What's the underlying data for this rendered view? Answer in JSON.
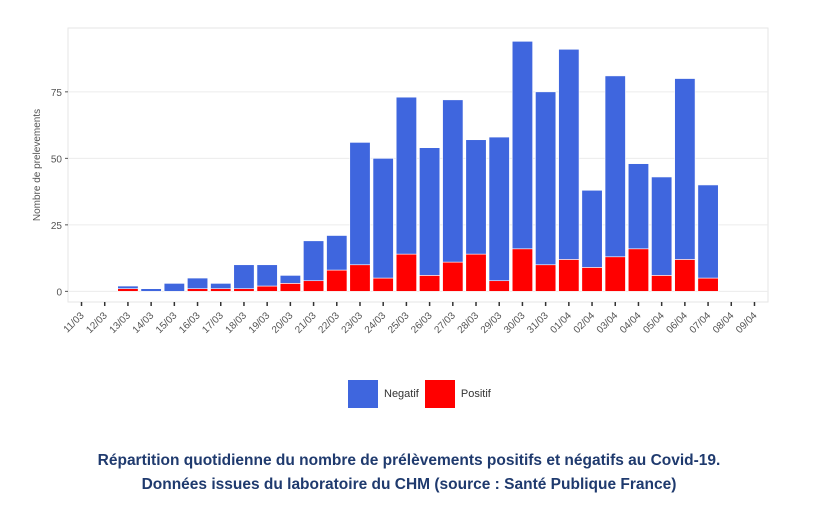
{
  "chart_data": {
    "type": "bar",
    "stacked": true,
    "ylabel": "Nombre de prelevements",
    "xlabel": "",
    "ylim": [
      -4,
      99
    ],
    "yticks": [
      0,
      25,
      50,
      75
    ],
    "grid": true,
    "legend_position": "bottom",
    "categories": [
      "11/03",
      "12/03",
      "13/03",
      "14/03",
      "15/03",
      "16/03",
      "17/03",
      "18/03",
      "19/03",
      "20/03",
      "21/03",
      "22/03",
      "23/03",
      "24/03",
      "25/03",
      "26/03",
      "27/03",
      "28/03",
      "29/03",
      "30/03",
      "31/03",
      "01/04",
      "02/04",
      "03/04",
      "04/04",
      "05/04",
      "06/04",
      "07/04",
      "08/04",
      "09/04"
    ],
    "series": [
      {
        "name": "Positif",
        "color": "#ff0000",
        "values": [
          0,
          0,
          1,
          0,
          0,
          1,
          1,
          1,
          2,
          3,
          4,
          8,
          10,
          5,
          14,
          6,
          11,
          14,
          4,
          16,
          10,
          12,
          9,
          13,
          16,
          6,
          12,
          5,
          0,
          0
        ]
      },
      {
        "name": "Negatif",
        "color": "#3f66de",
        "values": [
          0,
          0,
          1,
          1,
          3,
          4,
          2,
          9,
          8,
          3,
          15,
          13,
          46,
          45,
          59,
          48,
          61,
          43,
          54,
          78,
          65,
          79,
          29,
          68,
          32,
          37,
          68,
          35,
          0,
          0
        ]
      }
    ]
  },
  "legend": {
    "negatif": "Negatif",
    "positif": "Positif"
  },
  "caption": {
    "line1": "Répartition quotidienne du nombre de prélèvements positifs et négatifs au Covid-19.",
    "line2": "Données issues du laboratoire du CHM (source : Santé Publique France)"
  }
}
